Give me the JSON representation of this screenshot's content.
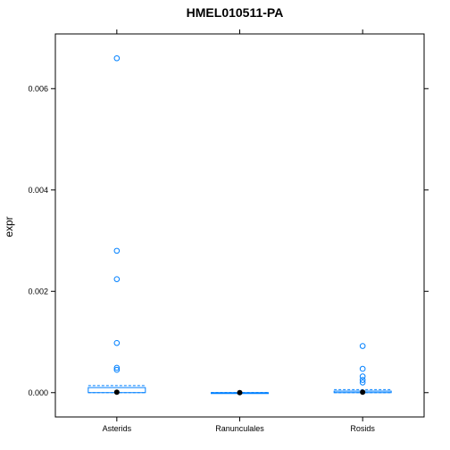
{
  "chart_data": {
    "type": "box",
    "title": "HMEL010511-PA",
    "xlabel": "",
    "ylabel": "expr",
    "ylim": [
      -0.00048,
      0.00708
    ],
    "yticks": [
      0.0,
      0.002,
      0.004,
      0.006
    ],
    "ytick_labels": [
      "0.000",
      "0.002",
      "0.004",
      "0.006"
    ],
    "categories": [
      "Asterids",
      "Ranunculales",
      "Rosids"
    ],
    "boxes": [
      {
        "category": "Asterids",
        "q1": 0.0,
        "median": 1e-05,
        "q3": 0.0001,
        "whisker_low": 0.0,
        "whisker_high": 0.00014,
        "outliers": [
          0.0066,
          0.0028,
          0.00224,
          0.00098,
          0.00049,
          0.00045
        ]
      },
      {
        "category": "Ranunculales",
        "q1": 0.0,
        "median": 0.0,
        "q3": 0.0,
        "whisker_low": 0.0,
        "whisker_high": 0.0,
        "outliers": []
      },
      {
        "category": "Rosids",
        "q1": 0.0,
        "median": 1e-05,
        "q3": 3e-05,
        "whisker_low": 0.0,
        "whisker_high": 6e-05,
        "outliers": [
          0.00092,
          0.00047,
          0.00032,
          0.00025,
          0.0002
        ]
      }
    ],
    "colors": {
      "box": "#0080ff",
      "median_dot": "#000000",
      "frame": "#000000"
    },
    "grid": false,
    "legend": "none"
  }
}
